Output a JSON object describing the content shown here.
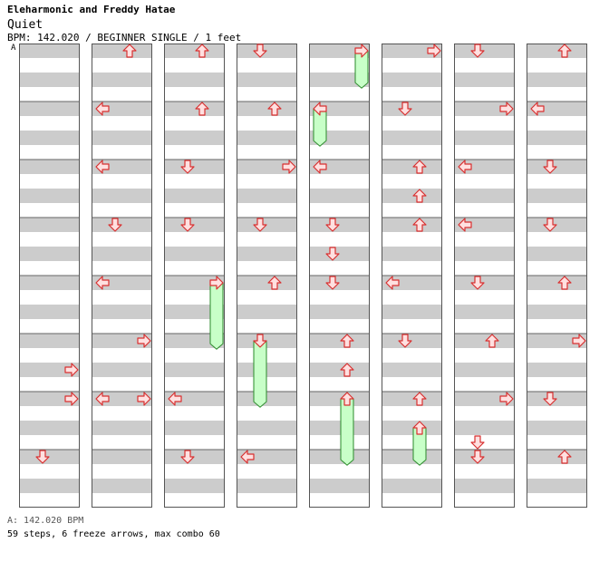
{
  "header": {
    "artist": "Eleharmonic and Freddy Hatae",
    "title": "Quiet",
    "meta": "BPM: 142.020 / BEGINNER SINGLE / 1 feet",
    "bpm_marker": "A"
  },
  "footer": {
    "bpm_line": "A: 142.020 BPM",
    "stats": "59 steps, 6 freeze arrows, max combo 60"
  },
  "colors": {
    "arrow_fill": "#ffe0e0",
    "arrow_stroke": "#d83030",
    "freeze_fill": "#c8ffc8",
    "freeze_stroke": "#2a8a2a",
    "stripe": "#cccccc",
    "panel_border": "#555555"
  },
  "chart_data": {
    "type": "step-chart",
    "columns": 8,
    "measures_per_column": 8,
    "rows_per_measure": 4,
    "lanes": [
      "left",
      "down",
      "up",
      "right"
    ],
    "steps": [
      {
        "col": 0,
        "beat": 22,
        "dir": "right"
      },
      {
        "col": 0,
        "beat": 24,
        "dir": "right"
      },
      {
        "col": 0,
        "beat": 28,
        "dir": "down"
      },
      {
        "col": 1,
        "beat": 0,
        "dir": "up"
      },
      {
        "col": 1,
        "beat": 4,
        "dir": "left"
      },
      {
        "col": 1,
        "beat": 8,
        "dir": "left"
      },
      {
        "col": 1,
        "beat": 12,
        "dir": "down"
      },
      {
        "col": 1,
        "beat": 16,
        "dir": "left"
      },
      {
        "col": 1,
        "beat": 20,
        "dir": "right"
      },
      {
        "col": 1,
        "beat": 24,
        "dir": "left"
      },
      {
        "col": 1,
        "beat": 24,
        "dir": "right"
      },
      {
        "col": 2,
        "beat": 0,
        "dir": "up"
      },
      {
        "col": 2,
        "beat": 4,
        "dir": "up"
      },
      {
        "col": 2,
        "beat": 8,
        "dir": "down"
      },
      {
        "col": 2,
        "beat": 12,
        "dir": "down"
      },
      {
        "col": 2,
        "beat": 16,
        "dir": "right",
        "freeze_end": 20.2
      },
      {
        "col": 2,
        "beat": 24,
        "dir": "left"
      },
      {
        "col": 2,
        "beat": 28,
        "dir": "down"
      },
      {
        "col": 3,
        "beat": 0,
        "dir": "down"
      },
      {
        "col": 3,
        "beat": 4,
        "dir": "up"
      },
      {
        "col": 3,
        "beat": 8,
        "dir": "right"
      },
      {
        "col": 3,
        "beat": 12,
        "dir": "down"
      },
      {
        "col": 3,
        "beat": 16,
        "dir": "up"
      },
      {
        "col": 3,
        "beat": 20,
        "dir": "down",
        "freeze_end": 24.2
      },
      {
        "col": 3,
        "beat": 28,
        "dir": "left"
      },
      {
        "col": 4,
        "beat": 0,
        "dir": "right",
        "freeze_end": 2.2
      },
      {
        "col": 4,
        "beat": 4,
        "dir": "left",
        "freeze_end": 6.2
      },
      {
        "col": 4,
        "beat": 8,
        "dir": "left"
      },
      {
        "col": 4,
        "beat": 12,
        "dir": "down"
      },
      {
        "col": 4,
        "beat": 14,
        "dir": "down"
      },
      {
        "col": 4,
        "beat": 16,
        "dir": "down"
      },
      {
        "col": 4,
        "beat": 20,
        "dir": "up"
      },
      {
        "col": 4,
        "beat": 22,
        "dir": "up"
      },
      {
        "col": 4,
        "beat": 24,
        "dir": "up",
        "freeze_end": 28.2
      },
      {
        "col": 5,
        "beat": 0,
        "dir": "right"
      },
      {
        "col": 5,
        "beat": 4,
        "dir": "down"
      },
      {
        "col": 5,
        "beat": 8,
        "dir": "up"
      },
      {
        "col": 5,
        "beat": 10,
        "dir": "up"
      },
      {
        "col": 5,
        "beat": 12,
        "dir": "up"
      },
      {
        "col": 5,
        "beat": 16,
        "dir": "left"
      },
      {
        "col": 5,
        "beat": 20,
        "dir": "down"
      },
      {
        "col": 5,
        "beat": 24,
        "dir": "up"
      },
      {
        "col": 5,
        "beat": 26,
        "dir": "up",
        "freeze_end": 28.2
      },
      {
        "col": 6,
        "beat": 0,
        "dir": "down"
      },
      {
        "col": 6,
        "beat": 4,
        "dir": "right"
      },
      {
        "col": 6,
        "beat": 8,
        "dir": "left"
      },
      {
        "col": 6,
        "beat": 12,
        "dir": "left"
      },
      {
        "col": 6,
        "beat": 16,
        "dir": "down"
      },
      {
        "col": 6,
        "beat": 20,
        "dir": "up"
      },
      {
        "col": 6,
        "beat": 24,
        "dir": "right"
      },
      {
        "col": 6,
        "beat": 27,
        "dir": "down"
      },
      {
        "col": 6,
        "beat": 28,
        "dir": "down"
      },
      {
        "col": 7,
        "beat": 0,
        "dir": "up"
      },
      {
        "col": 7,
        "beat": 4,
        "dir": "left"
      },
      {
        "col": 7,
        "beat": 8,
        "dir": "down"
      },
      {
        "col": 7,
        "beat": 12,
        "dir": "down"
      },
      {
        "col": 7,
        "beat": 16,
        "dir": "up"
      },
      {
        "col": 7,
        "beat": 20,
        "dir": "right"
      },
      {
        "col": 7,
        "beat": 24,
        "dir": "down"
      },
      {
        "col": 7,
        "beat": 28,
        "dir": "up"
      }
    ]
  }
}
